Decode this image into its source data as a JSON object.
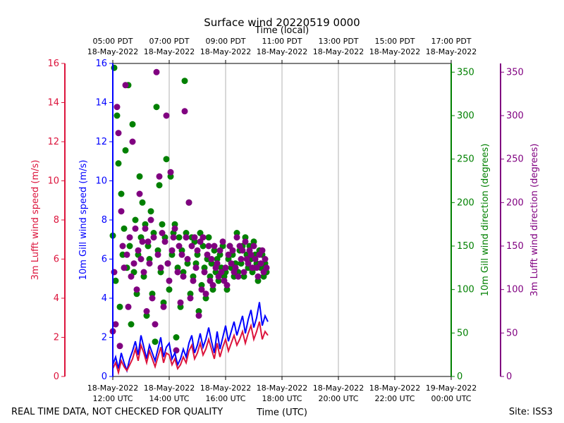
{
  "chart_data": {
    "type": "line",
    "title": "Surface wind 20220519 0000",
    "top_axis_label": "Time (local)",
    "xlabel": "Time (UTC)",
    "footer_left": "REAL TIME DATA, NOT CHECKED FOR QUALITY",
    "footer_right": "Site: ISS3",
    "x_hours_range": [
      12,
      24
    ],
    "bottom_ticks": [
      {
        "hour": 12,
        "line1": "18-May-2022",
        "line2": "12:00 UTC"
      },
      {
        "hour": 14,
        "line1": "18-May-2022",
        "line2": "14:00 UTC"
      },
      {
        "hour": 16,
        "line1": "18-May-2022",
        "line2": "16:00 UTC"
      },
      {
        "hour": 18,
        "line1": "18-May-2022",
        "line2": "18:00 UTC"
      },
      {
        "hour": 20,
        "line1": "18-May-2022",
        "line2": "20:00 UTC"
      },
      {
        "hour": 22,
        "line1": "18-May-2022",
        "line2": "22:00 UTC"
      },
      {
        "hour": 24,
        "line1": "19-May-2022",
        "line2": "00:00 UTC"
      }
    ],
    "top_ticks": [
      {
        "hour": 12,
        "line1": "05:00 PDT",
        "line2": "18-May-2022"
      },
      {
        "hour": 14,
        "line1": "07:00 PDT",
        "line2": "18-May-2022"
      },
      {
        "hour": 16,
        "line1": "09:00 PDT",
        "line2": "18-May-2022"
      },
      {
        "hour": 18,
        "line1": "11:00 PDT",
        "line2": "18-May-2022"
      },
      {
        "hour": 20,
        "line1": "13:00 PDT",
        "line2": "18-May-2022"
      },
      {
        "hour": 22,
        "line1": "15:00 PDT",
        "line2": "18-May-2022"
      },
      {
        "hour": 24,
        "line1": "17:00 PDT",
        "line2": "18-May-2022"
      }
    ],
    "axes": {
      "lufft_speed": {
        "label": "3m Lufft wind speed (m/s)",
        "range": [
          0,
          16
        ],
        "ticks": [
          0,
          2,
          4,
          6,
          8,
          10,
          12,
          14,
          16
        ],
        "color": "#dc143c"
      },
      "gill_speed": {
        "label": "10m Gill wind speed (m/s)",
        "range": [
          0,
          16
        ],
        "ticks": [
          0,
          2,
          4,
          6,
          8,
          10,
          12,
          14,
          16
        ],
        "color": "#0000ff"
      },
      "gill_dir": {
        "label": "10m Gill wind direction (degrees)",
        "range": [
          0,
          360
        ],
        "ticks": [
          0,
          50,
          100,
          150,
          200,
          250,
          300,
          350
        ],
        "color": "#008000"
      },
      "lufft_dir": {
        "label": "3m Lufft wind direction (degrees)",
        "range": [
          0,
          360
        ],
        "ticks": [
          0,
          50,
          100,
          150,
          200,
          250,
          300,
          350
        ],
        "color": "#800080"
      }
    },
    "series": [
      {
        "name": "10m Gill wind speed",
        "kind": "line",
        "axis": "gill_speed",
        "color": "#0000ff",
        "x": [
          12.0,
          12.1,
          12.2,
          12.3,
          12.4,
          12.5,
          12.6,
          12.7,
          12.8,
          12.9,
          13.0,
          13.1,
          13.2,
          13.3,
          13.4,
          13.5,
          13.6,
          13.7,
          13.8,
          13.9,
          14.0,
          14.1,
          14.2,
          14.3,
          14.4,
          14.5,
          14.6,
          14.7,
          14.8,
          14.9,
          15.0,
          15.1,
          15.2,
          15.3,
          15.4,
          15.5,
          15.6,
          15.7,
          15.8,
          15.9,
          16.0,
          16.1,
          16.2,
          16.3,
          16.4,
          16.5,
          16.6,
          16.7,
          16.8,
          16.9,
          17.0,
          17.1,
          17.2,
          17.3,
          17.4,
          17.5
        ],
        "y": [
          0.6,
          1.0,
          0.4,
          1.2,
          0.7,
          0.3,
          0.9,
          1.3,
          1.8,
          1.1,
          2.1,
          1.5,
          0.9,
          1.6,
          1.2,
          0.8,
          1.4,
          2.0,
          1.0,
          1.5,
          1.7,
          0.9,
          1.2,
          0.6,
          0.9,
          1.4,
          1.0,
          1.7,
          2.1,
          1.2,
          1.6,
          2.2,
          1.5,
          1.9,
          2.5,
          1.8,
          1.2,
          2.3,
          1.4,
          2.0,
          2.6,
          1.8,
          2.3,
          2.8,
          2.1,
          2.6,
          3.1,
          2.2,
          2.9,
          3.4,
          2.5,
          3.0,
          3.8,
          2.6,
          3.1,
          2.8
        ]
      },
      {
        "name": "3m Lufft wind speed",
        "kind": "line",
        "axis": "lufft_speed",
        "color": "#dc143c",
        "x": [
          12.0,
          12.1,
          12.2,
          12.3,
          12.4,
          12.5,
          12.6,
          12.7,
          12.8,
          12.9,
          13.0,
          13.1,
          13.2,
          13.3,
          13.4,
          13.5,
          13.6,
          13.7,
          13.8,
          13.9,
          14.0,
          14.1,
          14.2,
          14.3,
          14.4,
          14.5,
          14.6,
          14.7,
          14.8,
          14.9,
          15.0,
          15.1,
          15.2,
          15.3,
          15.4,
          15.5,
          15.6,
          15.7,
          15.8,
          15.9,
          16.0,
          16.1,
          16.2,
          16.3,
          16.4,
          16.5,
          16.6,
          16.7,
          16.8,
          16.9,
          17.0,
          17.1,
          17.2,
          17.3,
          17.4,
          17.5
        ],
        "y": [
          0.4,
          0.7,
          0.2,
          0.8,
          0.5,
          0.3,
          0.6,
          0.9,
          1.4,
          0.8,
          1.6,
          1.2,
          0.7,
          1.3,
          0.9,
          0.5,
          1.0,
          1.5,
          0.7,
          1.2,
          1.1,
          0.6,
          0.9,
          0.4,
          0.6,
          1.0,
          0.7,
          1.3,
          1.6,
          0.9,
          1.2,
          1.7,
          1.1,
          1.4,
          1.9,
          1.4,
          0.9,
          1.7,
          1.0,
          1.5,
          1.9,
          1.3,
          1.7,
          2.1,
          1.6,
          1.9,
          2.3,
          1.7,
          2.2,
          2.6,
          1.9,
          2.3,
          2.8,
          1.9,
          2.3,
          2.1
        ]
      },
      {
        "name": "10m Gill wind direction",
        "kind": "scatter",
        "axis": "gill_dir",
        "color": "#008000",
        "x": [
          12.0,
          12.05,
          12.1,
          12.15,
          12.2,
          12.25,
          12.3,
          12.35,
          12.4,
          12.45,
          12.5,
          12.55,
          12.6,
          12.65,
          12.7,
          12.75,
          12.8,
          12.85,
          12.9,
          12.95,
          13.0,
          13.05,
          13.1,
          13.15,
          13.2,
          13.25,
          13.3,
          13.35,
          13.4,
          13.45,
          13.5,
          13.55,
          13.6,
          13.65,
          13.7,
          13.75,
          13.8,
          13.85,
          13.9,
          13.95,
          14.0,
          14.05,
          14.1,
          14.15,
          14.2,
          14.25,
          14.3,
          14.35,
          14.4,
          14.45,
          14.5,
          14.55,
          14.6,
          14.65,
          14.7,
          14.75,
          14.8,
          14.85,
          14.9,
          14.95,
          15.0,
          15.05,
          15.1,
          15.15,
          15.2,
          15.25,
          15.3,
          15.35,
          15.4,
          15.45,
          15.5,
          15.55,
          15.6,
          15.65,
          15.7,
          15.75,
          15.8,
          15.85,
          15.9,
          15.95,
          16.0,
          16.05,
          16.1,
          16.15,
          16.2,
          16.25,
          16.3,
          16.35,
          16.4,
          16.45,
          16.5,
          16.55,
          16.6,
          16.65,
          16.7,
          16.75,
          16.8,
          16.85,
          16.9,
          16.95,
          17.0,
          17.05,
          17.1,
          17.15,
          17.2,
          17.25,
          17.3,
          17.35,
          17.4,
          17.45
        ],
        "y": [
          162,
          355,
          110,
          300,
          245,
          80,
          210,
          140,
          170,
          260,
          125,
          335,
          150,
          60,
          290,
          120,
          180,
          95,
          140,
          230,
          160,
          200,
          115,
          175,
          70,
          150,
          135,
          190,
          95,
          165,
          40,
          310,
          145,
          220,
          120,
          175,
          85,
          160,
          250,
          130,
          100,
          230,
          140,
          165,
          175,
          45,
          125,
          160,
          80,
          145,
          120,
          340,
          165,
          130,
          200,
          95,
          160,
          115,
          155,
          130,
          140,
          75,
          165,
          105,
          150,
          125,
          90,
          135,
          160,
          115,
          130,
          100,
          145,
          120,
          135,
          110,
          140,
          125,
          150,
          115,
          120,
          100,
          135,
          150,
          125,
          140,
          115,
          130,
          165,
          120,
          145,
          130,
          150,
          115,
          160,
          140,
          125,
          150,
          135,
          120,
          155,
          140,
          130,
          110,
          145,
          125,
          140,
          115,
          130,
          120
        ]
      },
      {
        "name": "3m Lufft wind direction",
        "kind": "scatter",
        "axis": "lufft_dir",
        "color": "#800080",
        "x": [
          12.0,
          12.05,
          12.1,
          12.15,
          12.2,
          12.25,
          12.3,
          12.35,
          12.4,
          12.45,
          12.5,
          12.55,
          12.6,
          12.65,
          12.7,
          12.75,
          12.8,
          12.85,
          12.9,
          12.95,
          13.0,
          13.05,
          13.1,
          13.15,
          13.2,
          13.25,
          13.3,
          13.35,
          13.4,
          13.45,
          13.5,
          13.55,
          13.6,
          13.65,
          13.7,
          13.75,
          13.8,
          13.85,
          13.9,
          13.95,
          14.0,
          14.05,
          14.1,
          14.15,
          14.2,
          14.25,
          14.3,
          14.35,
          14.4,
          14.45,
          14.5,
          14.55,
          14.6,
          14.65,
          14.7,
          14.75,
          14.8,
          14.85,
          14.9,
          14.95,
          15.0,
          15.05,
          15.1,
          15.15,
          15.2,
          15.25,
          15.3,
          15.35,
          15.4,
          15.45,
          15.5,
          15.55,
          15.6,
          15.65,
          15.7,
          15.75,
          15.8,
          15.85,
          15.9,
          15.95,
          16.0,
          16.05,
          16.1,
          16.15,
          16.2,
          16.25,
          16.3,
          16.35,
          16.4,
          16.45,
          16.5,
          16.55,
          16.6,
          16.65,
          16.7,
          16.75,
          16.8,
          16.85,
          16.9,
          16.95,
          17.0,
          17.05,
          17.1,
          17.15,
          17.2,
          17.25,
          17.3,
          17.35,
          17.4,
          17.45
        ],
        "y": [
          52,
          120,
          60,
          310,
          280,
          35,
          190,
          150,
          125,
          335,
          140,
          80,
          160,
          115,
          270,
          130,
          170,
          100,
          145,
          210,
          135,
          155,
          120,
          170,
          75,
          155,
          130,
          180,
          90,
          160,
          60,
          350,
          140,
          230,
          125,
          165,
          80,
          155,
          300,
          130,
          110,
          235,
          145,
          160,
          170,
          30,
          120,
          150,
          85,
          140,
          115,
          305,
          160,
          135,
          200,
          90,
          150,
          110,
          160,
          125,
          145,
          70,
          155,
          100,
          160,
          120,
          95,
          140,
          150,
          110,
          135,
          105,
          150,
          125,
          130,
          115,
          145,
          120,
          155,
          110,
          125,
          105,
          140,
          150,
          130,
          145,
          120,
          125,
          160,
          115,
          150,
          135,
          145,
          120,
          155,
          135,
          130,
          145,
          140,
          125,
          150,
          135,
          125,
          115,
          140,
          130,
          145,
          120,
          135,
          125
        ]
      }
    ]
  }
}
